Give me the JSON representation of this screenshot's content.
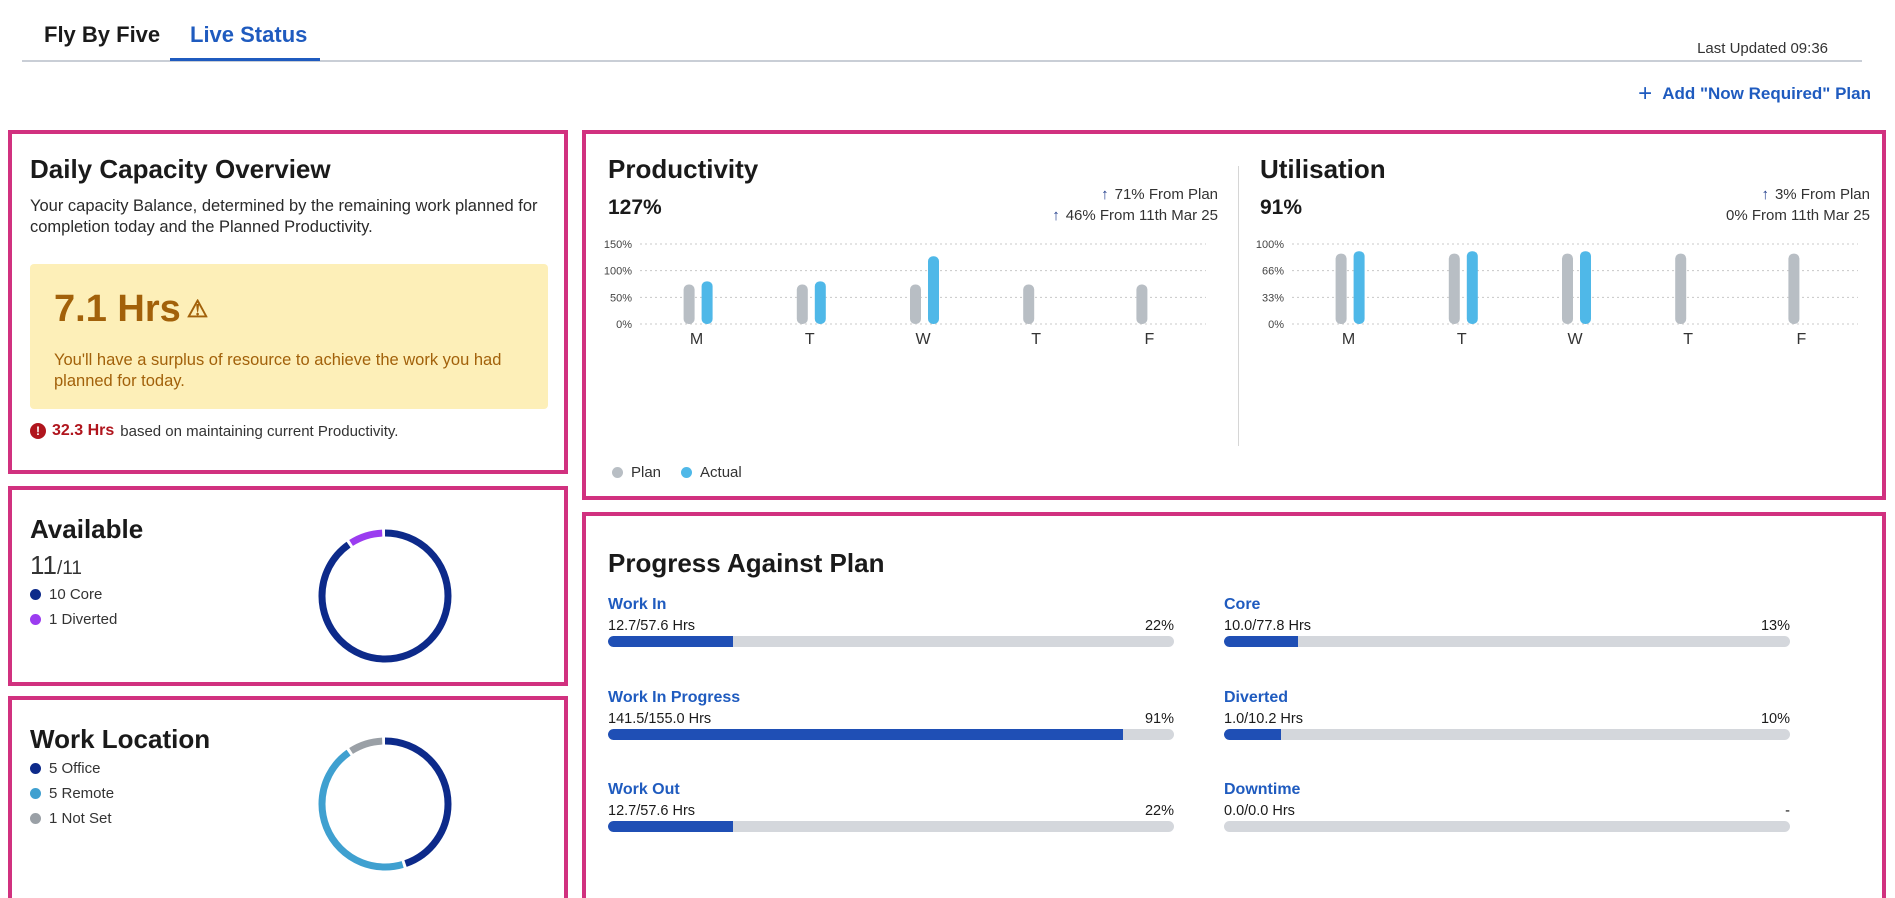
{
  "tabs": [
    {
      "label": "Fly By Five",
      "active": false
    },
    {
      "label": "Live Status",
      "active": true
    }
  ],
  "last_updated": "Last Updated 09:36",
  "add_plan": {
    "icon": "plus-icon",
    "label": "Add \"Now Required\" Plan"
  },
  "capacity": {
    "title": "Daily Capacity Overview",
    "description": "Your capacity Balance, determined by the remaining work planned for completion today and the Planned Productivity.",
    "surplus_value": "7.1 Hrs",
    "surplus_icon": "warning-triangle-icon",
    "surplus_message": "You'll have a surplus of resource to achieve the work you had planned for today.",
    "alert_hours": "32.3 Hrs",
    "alert_text": "based on maintaining current Productivity."
  },
  "available": {
    "title": "Available",
    "count": "11",
    "total": "/11",
    "legend": [
      {
        "label": "10 Core",
        "color": "#0d2a8a",
        "value": 10
      },
      {
        "label": "1 Diverted",
        "color": "#9b3cf0",
        "value": 1
      }
    ]
  },
  "work_location": {
    "title": "Work Location",
    "legend": [
      {
        "label": "5 Office",
        "color": "#0d2a8a",
        "value": 5
      },
      {
        "label": "5 Remote",
        "color": "#3fa0d0",
        "value": 5
      },
      {
        "label": "1 Not Set",
        "color": "#9aa0a6",
        "value": 1
      }
    ]
  },
  "productivity": {
    "title": "Productivity",
    "value": "127%",
    "delta_plan": "71% From Plan",
    "delta_prev": "46% From 11th Mar 25"
  },
  "utilisation": {
    "title": "Utilisation",
    "value": "91%",
    "delta_plan": "3% From Plan",
    "delta_prev": "0% From 11th Mar 25"
  },
  "chart_legend": [
    {
      "label": "Plan",
      "color": "#b8bec4"
    },
    {
      "label": "Actual",
      "color": "#4fb8e8"
    }
  ],
  "chart_data": [
    {
      "type": "bar",
      "title": "Productivity",
      "categories": [
        "M",
        "T",
        "W",
        "T",
        "F"
      ],
      "yticks": [
        "0%",
        "50%",
        "100%",
        "150%"
      ],
      "ylim": [
        0,
        150
      ],
      "series": [
        {
          "name": "Plan",
          "values": [
            74,
            74,
            74,
            74,
            74
          ]
        },
        {
          "name": "Actual",
          "values": [
            80,
            80,
            127,
            null,
            null
          ]
        }
      ]
    },
    {
      "type": "bar",
      "title": "Utilisation",
      "categories": [
        "M",
        "T",
        "W",
        "T",
        "F"
      ],
      "yticks": [
        "0%",
        "33%",
        "66%",
        "100%"
      ],
      "ylim": [
        0,
        100
      ],
      "series": [
        {
          "name": "Plan",
          "values": [
            88,
            88,
            88,
            88,
            88
          ]
        },
        {
          "name": "Actual",
          "values": [
            91,
            91,
            91,
            null,
            null
          ]
        }
      ]
    }
  ],
  "progress": {
    "title": "Progress Against Plan",
    "items": [
      {
        "name": "Work In",
        "value": "12.7/57.6 Hrs",
        "pct": "22%",
        "fill": 0.22
      },
      {
        "name": "Core",
        "value": "10.0/77.8 Hrs",
        "pct": "13%",
        "fill": 0.13
      },
      {
        "name": "Work In Progress",
        "value": "141.5/155.0 Hrs",
        "pct": "91%",
        "fill": 0.91
      },
      {
        "name": "Diverted",
        "value": "1.0/10.2 Hrs",
        "pct": "10%",
        "fill": 0.1
      },
      {
        "name": "Work Out",
        "value": "12.7/57.6 Hrs",
        "pct": "22%",
        "fill": 0.22
      },
      {
        "name": "Downtime",
        "value": "0.0/0.0 Hrs",
        "pct": "-",
        "fill": 0
      }
    ]
  }
}
